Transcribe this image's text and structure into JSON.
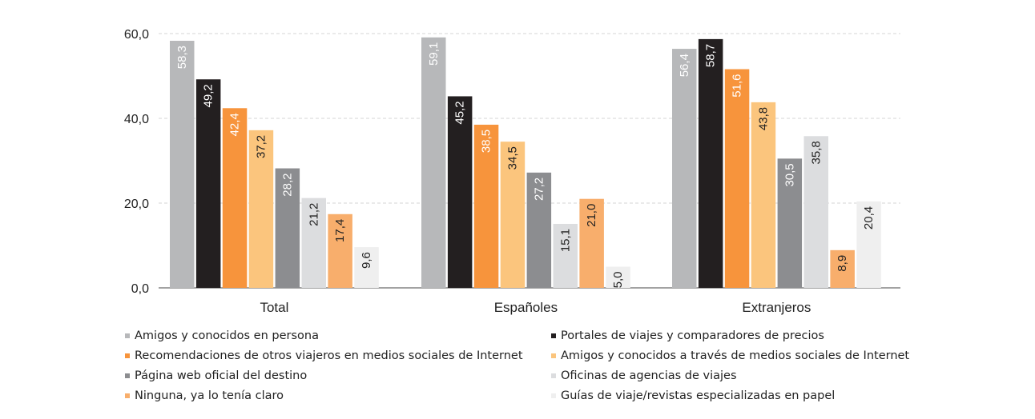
{
  "chart_data": {
    "type": "bar",
    "categories": [
      "Total",
      "Españoles",
      "Extranjeros"
    ],
    "ylim": [
      0,
      60
    ],
    "yticks": [
      "0,0",
      "20,0",
      "40,0",
      "60,0"
    ],
    "ytick_values": [
      0,
      20,
      40,
      60
    ],
    "grid": true,
    "legend_position": "bottom",
    "series": [
      {
        "name": "Amigos y conocidos en persona",
        "color": "#b7b8ba",
        "values": [
          58.3,
          59.1,
          56.4
        ],
        "labels": [
          "58,3",
          "59,1",
          "56,4"
        ]
      },
      {
        "name": "Portales de viajes y comparadores de precios",
        "color": "#231f20",
        "values": [
          49.2,
          45.2,
          58.7
        ],
        "labels": [
          "49,2",
          "45,2",
          "58,7"
        ]
      },
      {
        "name": "Recomendaciones de otros viajeros en medios sociales de Internet",
        "color": "#f7943c",
        "values": [
          42.4,
          38.5,
          51.6
        ],
        "labels": [
          "42,4",
          "38,5",
          "51,6"
        ]
      },
      {
        "name": "Amigos y conocidos a través de medios sociales de Internet",
        "color": "#fbc57d",
        "values": [
          37.2,
          34.5,
          43.8
        ],
        "labels": [
          "37,2",
          "34,5",
          "43,8"
        ]
      },
      {
        "name": "Página web oficial del destino",
        "color": "#8c8d90",
        "values": [
          28.2,
          27.2,
          30.5
        ],
        "labels": [
          "28,2",
          "27,2",
          "30,5"
        ]
      },
      {
        "name": "Oficinas de agencias de viajes",
        "color": "#dcdddf",
        "values": [
          21.2,
          15.1,
          35.8
        ],
        "labels": [
          "21,2",
          "15,1",
          "35,8"
        ]
      },
      {
        "name": "Ninguna, ya lo tenía claro",
        "color": "#f8ae6c",
        "values": [
          17.4,
          21.0,
          8.9
        ],
        "labels": [
          "17,4",
          "21,0",
          "8,9"
        ]
      },
      {
        "name": "Guías de viaje/revistas especializadas en papel",
        "color": "#efefef",
        "values": [
          9.6,
          5.0,
          20.4
        ],
        "labels": [
          "9,6",
          "5,0",
          "20,4"
        ]
      }
    ]
  }
}
